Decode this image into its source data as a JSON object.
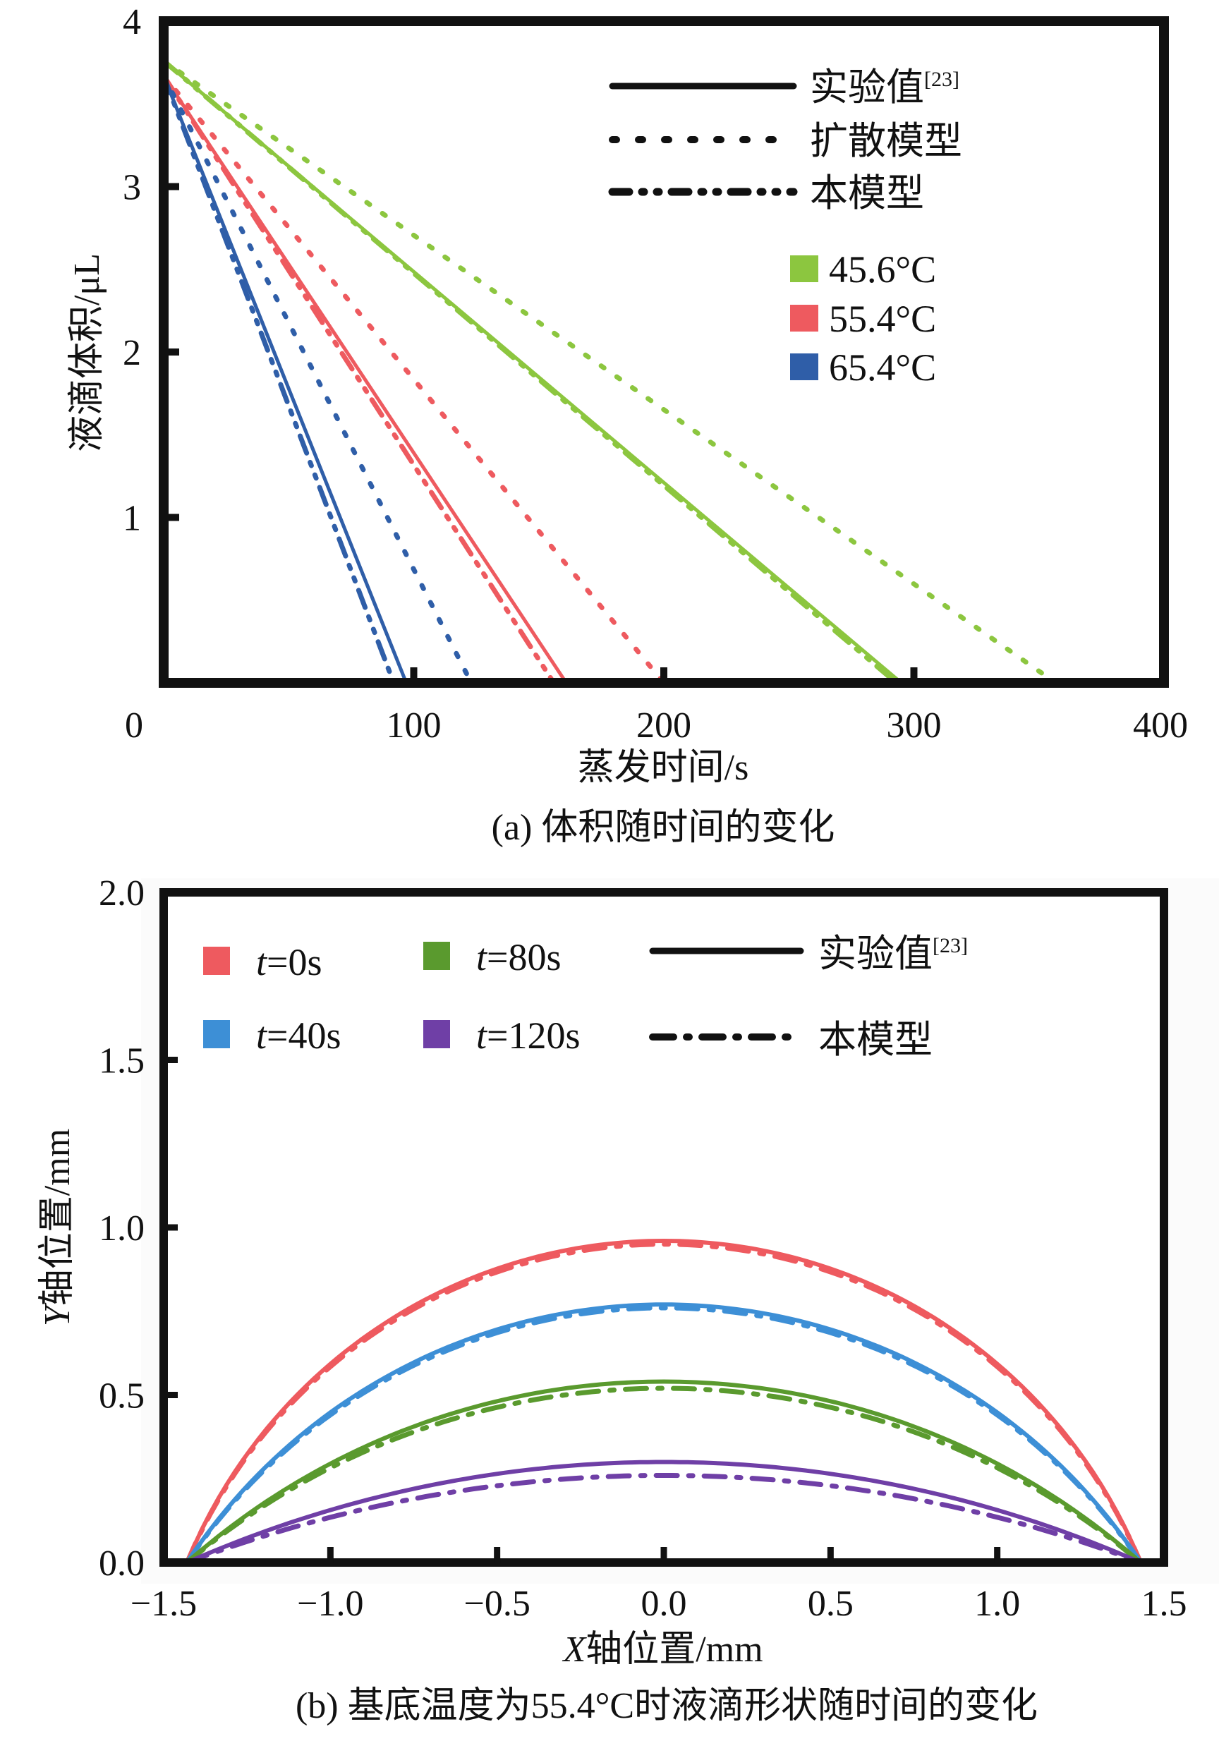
{
  "chart_data": [
    {
      "id": "a",
      "type": "line",
      "title": "",
      "caption": "(a) 体积随时间的变化",
      "xlabel": "蒸发时间/s",
      "ylabel": "液滴体积/μL",
      "xlim": [
        0,
        400
      ],
      "ylim": [
        0,
        4
      ],
      "xticks": [
        0,
        100,
        200,
        300,
        400
      ],
      "xtick_labels": [
        "0",
        "100",
        "200",
        "300",
        "400"
      ],
      "yticks": [
        1,
        2,
        3,
        4
      ],
      "ytick_labels": [
        "1",
        "2",
        "3",
        "4"
      ],
      "grid": false,
      "style_legend": {
        "placement": "top-right",
        "entries": [
          {
            "label": "实验值",
            "superscript": "[23]",
            "style": "solid"
          },
          {
            "label": "扩散模型",
            "style": "dotted"
          },
          {
            "label": "本模型",
            "style": "dash-dot-dot"
          }
        ]
      },
      "color_legend": {
        "placement": "right",
        "entries": [
          {
            "label": "45.6°C",
            "color": "#8cc63f"
          },
          {
            "label": "55.4°C",
            "color": "#ee5a5f"
          },
          {
            "label": "65.4°C",
            "color": "#2f5ea8"
          }
        ]
      },
      "series": [
        {
          "name": "45.6°C 实验值",
          "color": "#8cc63f",
          "style": "solid",
          "x": [
            0,
            295
          ],
          "y": [
            3.76,
            0
          ]
        },
        {
          "name": "45.6°C 扩散模型",
          "color": "#8cc63f",
          "style": "dotted",
          "x": [
            0,
            352
          ],
          "y": [
            3.76,
            0.05
          ]
        },
        {
          "name": "45.6°C 本模型",
          "color": "#8cc63f",
          "style": "dash-dot-dot",
          "x": [
            0,
            293
          ],
          "y": [
            3.76,
            0
          ]
        },
        {
          "name": "55.4°C 实验值",
          "color": "#ee5a5f",
          "style": "solid",
          "x": [
            0,
            161
          ],
          "y": [
            3.67,
            0
          ]
        },
        {
          "name": "55.4°C 扩散模型",
          "color": "#ee5a5f",
          "style": "dotted",
          "x": [
            0,
            200
          ],
          "y": [
            3.67,
            0
          ]
        },
        {
          "name": "55.4°C 本模型",
          "color": "#ee5a5f",
          "style": "dash-dot-dot",
          "x": [
            0,
            156
          ],
          "y": [
            3.67,
            0
          ]
        },
        {
          "name": "65.4°C 实验值",
          "color": "#2f5ea8",
          "style": "solid",
          "x": [
            0,
            97
          ],
          "y": [
            3.67,
            0
          ]
        },
        {
          "name": "65.4°C 扩散模型",
          "color": "#2f5ea8",
          "style": "dotted",
          "x": [
            0,
            123
          ],
          "y": [
            3.67,
            0
          ]
        },
        {
          "name": "65.4°C 本模型",
          "color": "#2f5ea8",
          "style": "dash-dot-dot",
          "x": [
            0,
            92
          ],
          "y": [
            3.67,
            0
          ]
        }
      ]
    },
    {
      "id": "b",
      "type": "line",
      "title": "",
      "caption": "(b) 基底温度为55.4°C时液滴形状随时间的变化",
      "xlabel_italic": "X",
      "xlabel": "轴位置/mm",
      "ylabel_italic": "Y",
      "ylabel": "轴位置/mm",
      "xlim": [
        -1.5,
        1.5
      ],
      "ylim": [
        0,
        2.0
      ],
      "xticks": [
        -1.5,
        -1.0,
        -0.5,
        0.0,
        0.5,
        1.0,
        1.5
      ],
      "xtick_labels": [
        "−1.5",
        "−1.0",
        "−0.5",
        "0.0",
        "0.5",
        "1.0",
        "1.5"
      ],
      "yticks": [
        0.0,
        0.5,
        1.0,
        1.5,
        2.0
      ],
      "ytick_labels": [
        "0.0",
        "0.5",
        "1.0",
        "1.5",
        "2.0"
      ],
      "grid": false,
      "contact_radius": 1.43,
      "color_legend": {
        "placement": "top-left",
        "entries": [
          {
            "italic": "t",
            "label": "=0s",
            "color": "#ee5a5f"
          },
          {
            "italic": "t",
            "label": "=40s",
            "color": "#3d8fd6"
          },
          {
            "italic": "t",
            "label": "=80s",
            "color": "#5a9a2e"
          },
          {
            "italic": "t",
            "label": "=120s",
            "color": "#6f3fa6"
          }
        ]
      },
      "style_legend": {
        "placement": "top-right",
        "entries": [
          {
            "label": "实验值",
            "superscript": "[23]",
            "style": "solid"
          },
          {
            "label": "本模型",
            "style": "dash-dot"
          }
        ]
      },
      "series": [
        {
          "name": "t=0s 实验值",
          "color": "#ee5a5f",
          "style": "solid",
          "peak_height": 0.96
        },
        {
          "name": "t=0s 本模型",
          "color": "#ee5a5f",
          "style": "dash-dot",
          "peak_height": 0.95
        },
        {
          "name": "t=40s 实验值",
          "color": "#3d8fd6",
          "style": "solid",
          "peak_height": 0.77
        },
        {
          "name": "t=40s 本模型",
          "color": "#3d8fd6",
          "style": "dash-dot",
          "peak_height": 0.76
        },
        {
          "name": "t=80s 实验值",
          "color": "#5a9a2e",
          "style": "solid",
          "peak_height": 0.54
        },
        {
          "name": "t=80s 本模型",
          "color": "#5a9a2e",
          "style": "dash-dot",
          "peak_height": 0.52
        },
        {
          "name": "t=120s 实验值",
          "color": "#6f3fa6",
          "style": "solid",
          "peak_height": 0.3
        },
        {
          "name": "t=120s 本模型",
          "color": "#6f3fa6",
          "style": "dash-dot",
          "peak_height": 0.26
        }
      ]
    }
  ]
}
